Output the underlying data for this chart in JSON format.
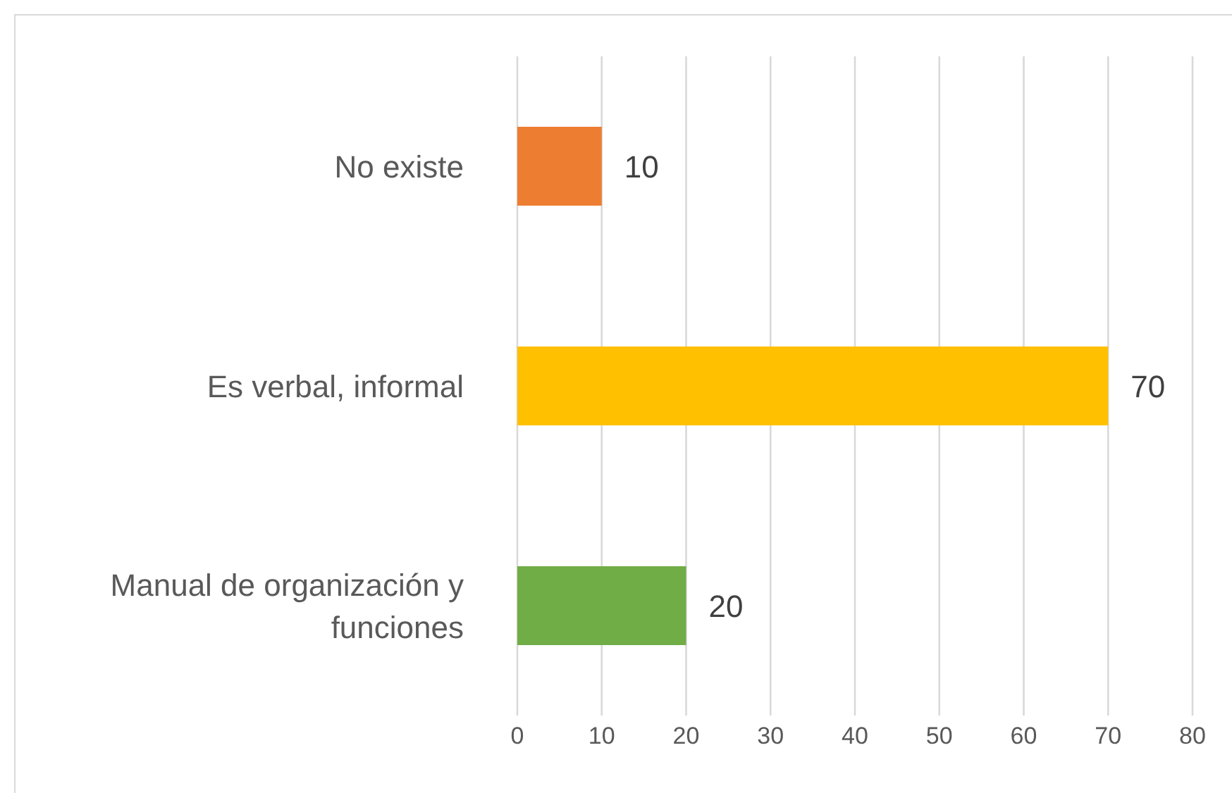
{
  "chart_data": {
    "type": "bar",
    "orientation": "horizontal",
    "categories": [
      "No existe",
      "Es verbal, informal",
      "Manual de organización y funciones"
    ],
    "values": [
      10,
      70,
      20
    ],
    "colors": [
      "#ed7d31",
      "#ffc000",
      "#70ad47"
    ],
    "xlim": [
      0,
      80
    ],
    "xticks": [
      0,
      10,
      20,
      30,
      40,
      50,
      60,
      70,
      80
    ],
    "grid": "x",
    "data_labels": true
  }
}
